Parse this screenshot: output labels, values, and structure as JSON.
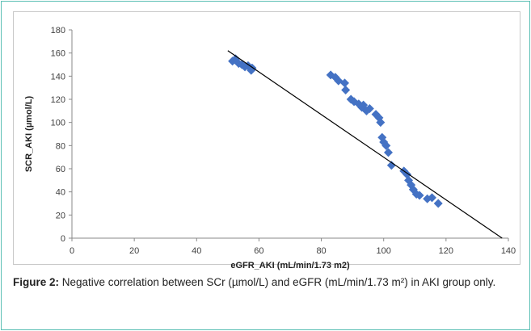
{
  "chart_data": {
    "type": "scatter",
    "title": "",
    "xlabel": "eGFR_AKI (mL/min/1.73 m2)",
    "ylabel": "SCR_AKI (µmol/L)",
    "xlim": [
      0,
      140
    ],
    "ylim": [
      0,
      180
    ],
    "x_ticks": [
      "0",
      "20",
      "40",
      "60",
      "80",
      "100",
      "120",
      "140"
    ],
    "y_ticks": [
      "0",
      "20",
      "40",
      "60",
      "80",
      "100",
      "120",
      "140",
      "160",
      "180"
    ],
    "grid": false,
    "legend": "none",
    "marker_color": "#4472c4",
    "trendline_color": "#000000",
    "trendline": {
      "x": [
        50,
        138
      ],
      "y": [
        162,
        0
      ]
    },
    "series": [
      {
        "points": [
          [
            51.5,
            153
          ],
          [
            52.5,
            155
          ],
          [
            53.5,
            151
          ],
          [
            54.5,
            150
          ],
          [
            55.5,
            148
          ],
          [
            56.5,
            149
          ],
          [
            57.5,
            145
          ],
          [
            57.8,
            147
          ],
          [
            83,
            141
          ],
          [
            84.5,
            139
          ],
          [
            85.5,
            136
          ],
          [
            87.5,
            134
          ],
          [
            87.8,
            128
          ],
          [
            89.5,
            120
          ],
          [
            90.5,
            118
          ],
          [
            92,
            116
          ],
          [
            93,
            113
          ],
          [
            93.5,
            115
          ],
          [
            94.5,
            110
          ],
          [
            95.5,
            112
          ],
          [
            97.5,
            107
          ],
          [
            98.5,
            104
          ],
          [
            99,
            100
          ],
          [
            99.5,
            87
          ],
          [
            100,
            83
          ],
          [
            100.8,
            80
          ],
          [
            101.5,
            74
          ],
          [
            102.5,
            63
          ],
          [
            106.5,
            58
          ],
          [
            107.5,
            55
          ],
          [
            108,
            50
          ],
          [
            108.8,
            46
          ],
          [
            109.5,
            42
          ],
          [
            110.5,
            38
          ],
          [
            111.5,
            37
          ],
          [
            114,
            34
          ],
          [
            115.5,
            35
          ],
          [
            117.5,
            30
          ]
        ]
      }
    ]
  },
  "caption": {
    "label": "Figure 2:",
    "text": " Negative correlation between SCr (µmol/L) and eGFR (mL/min/1.73 m²) in AKI group only."
  }
}
